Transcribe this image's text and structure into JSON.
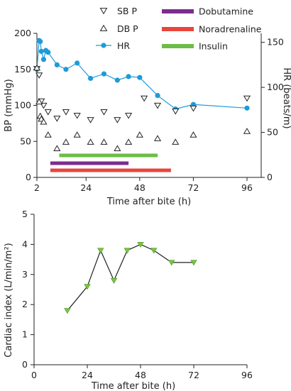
{
  "chart_data": [
    {
      "type": "scatter",
      "xlabel": "Time after bite (h)",
      "ylabel": "BP (mmHg)",
      "y2label": "HR (beats/m)",
      "xlim": [
        2,
        96
      ],
      "ylim": [
        0,
        200
      ],
      "y2lim": [
        0,
        160
      ],
      "x_ticks": [
        "2",
        "24",
        "48",
        "72",
        "96"
      ],
      "y_ticks": [
        "0",
        "50",
        "100",
        "150",
        "200"
      ],
      "y2_ticks": [
        "0",
        "50",
        "100",
        "150"
      ],
      "legend_position": "top",
      "series": [
        {
          "name": "SB P",
          "axis": "left",
          "marker": "triangle-down-open",
          "x": [
            2,
            3,
            4,
            5,
            7,
            11,
            15,
            20,
            26,
            32,
            38,
            43,
            50,
            56,
            64,
            72,
            96
          ],
          "y": [
            151,
            142,
            106,
            100,
            91,
            82,
            91,
            86,
            80,
            91,
            80,
            86,
            110,
            100,
            92,
            96,
            110
          ]
        },
        {
          "name": "DB P",
          "axis": "left",
          "marker": "triangle-up-open",
          "x": [
            2,
            3,
            3.5,
            4,
            5,
            7,
            11,
            15,
            20,
            26,
            32,
            38,
            43,
            48,
            56,
            64,
            72,
            96
          ],
          "y": [
            152,
            105,
            85,
            81,
            77,
            59,
            40,
            49,
            59,
            49,
            49,
            40,
            49,
            59,
            54,
            49,
            59,
            64
          ]
        },
        {
          "name": "HR",
          "axis": "right",
          "marker": "circle-filled",
          "color": "#1e9bd7",
          "x": [
            2,
            3,
            3.5,
            4,
            5,
            6,
            7,
            11,
            15,
            20,
            26,
            32,
            38,
            43,
            48,
            56,
            64,
            72,
            96
          ],
          "y": [
            120,
            152,
            151,
            140,
            131,
            141,
            139,
            125,
            120,
            127,
            110,
            115,
            108,
            112,
            111,
            91,
            76,
            81,
            77
          ]
        }
      ],
      "bars": [
        {
          "name": "Dobutamine",
          "color": "#7b2d8e",
          "x_start": 8,
          "x_end": 43
        },
        {
          "name": "Noradrenaline",
          "color": "#e8453c",
          "x_start": 8,
          "x_end": 62
        },
        {
          "name": "Insulin",
          "color": "#6cbd45",
          "x_start": 12,
          "x_end": 56
        }
      ]
    },
    {
      "type": "line",
      "xlabel": "Time after bite (h)",
      "ylabel": "Cardiac index (L/min/m²)",
      "xlim": [
        0,
        96
      ],
      "ylim": [
        0,
        5
      ],
      "x_ticks": [
        "0",
        "24",
        "48",
        "72",
        "96"
      ],
      "y_ticks": [
        "0",
        "1",
        "2",
        "3",
        "4",
        "5"
      ],
      "marker": "triangle-down-filled",
      "marker_color": "#7dc143",
      "x": [
        15,
        24,
        30,
        36,
        42,
        48,
        54,
        62,
        72
      ],
      "y": [
        1.8,
        2.6,
        3.8,
        2.8,
        3.8,
        4.0,
        3.8,
        3.4,
        3.4
      ]
    }
  ]
}
